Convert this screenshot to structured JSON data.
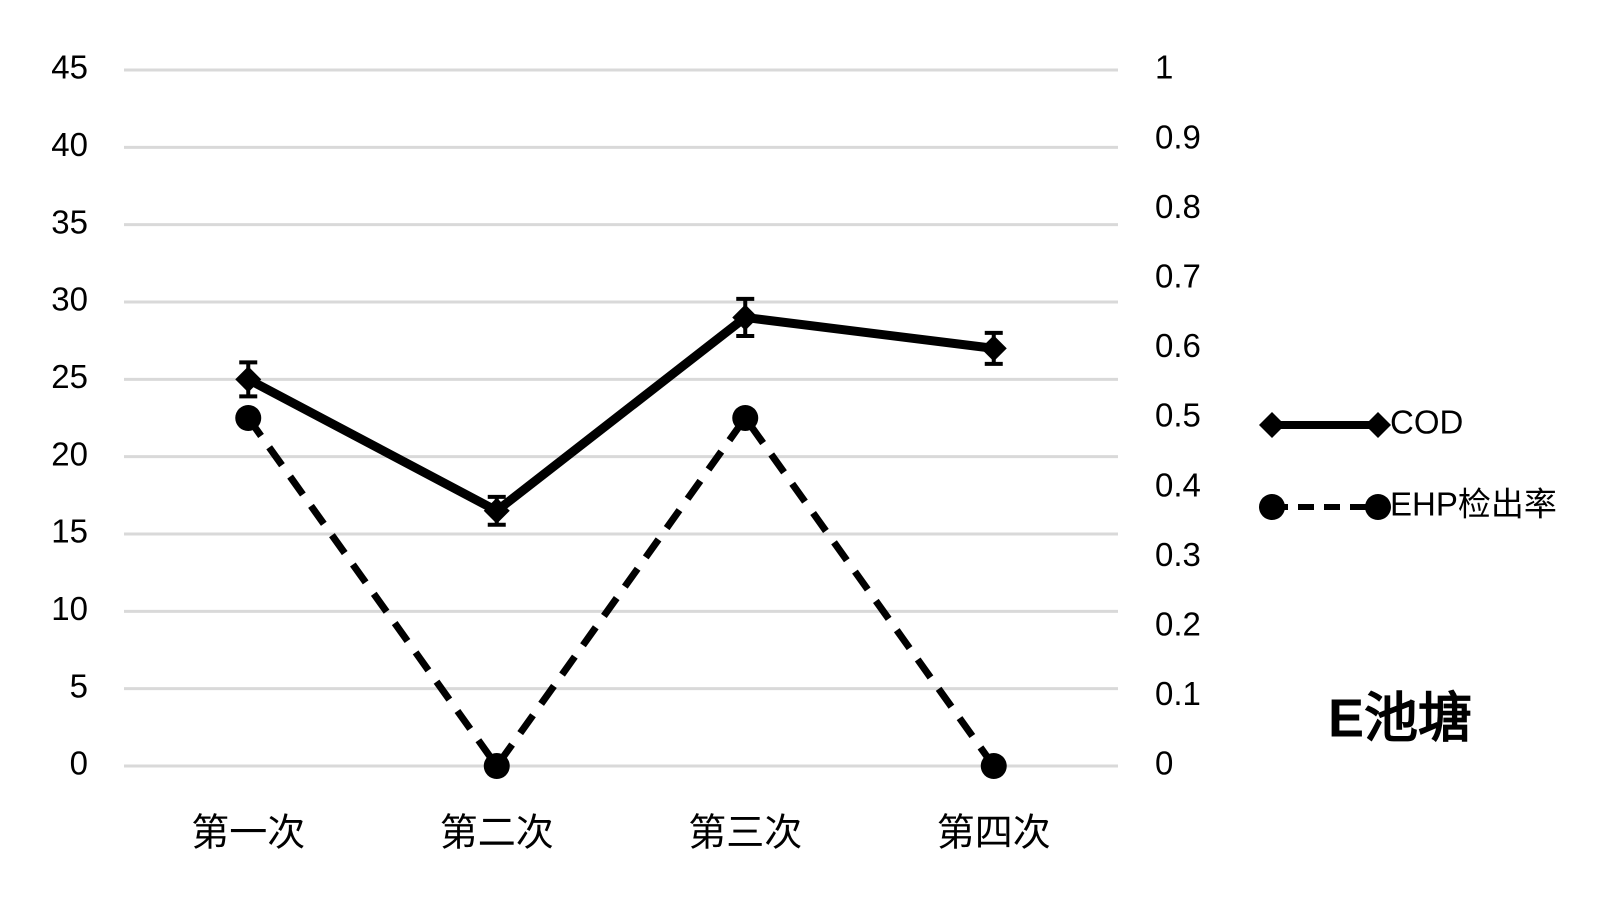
{
  "chart_data": {
    "type": "line",
    "title": "E池塘",
    "categories": [
      "第一次",
      "第二次",
      "第三次",
      "第四次"
    ],
    "series": [
      {
        "name": "COD",
        "color": "#000000",
        "values": [
          25,
          16.5,
          29,
          27
        ],
        "errors": [
          1.1,
          0.9,
          1.2,
          1.0
        ],
        "marker": "diamond",
        "line_style": "solid"
      },
      {
        "name": "EHP检出率",
        "color": "#000000",
        "values": [
          0.5,
          0,
          0.5,
          0
        ],
        "axis": "y2",
        "marker": "circle",
        "line_style": "dashed"
      }
    ],
    "ylim": [
      0,
      45
    ],
    "yticks": [
      0,
      5,
      10,
      15,
      20,
      25,
      30,
      35,
      40,
      45
    ],
    "y2lim": [
      0,
      1
    ],
    "y2ticks": [
      0,
      0.1,
      0.2,
      0.3,
      0.4,
      0.5,
      0.6,
      0.7,
      0.8,
      0.9,
      1
    ],
    "grid": true,
    "legend": "right"
  }
}
